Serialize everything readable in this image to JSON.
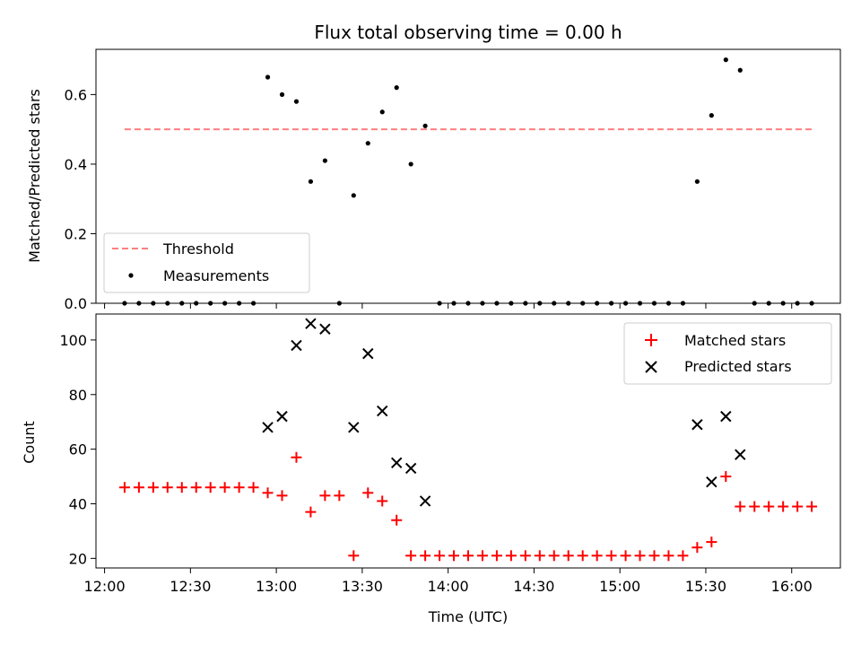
{
  "chart_data": [
    {
      "type": "scatter",
      "title": "Flux total observing time = 0.00 h",
      "xlabel": "",
      "ylabel": "Matched/Predicted stars",
      "ylim": [
        0,
        0.73
      ],
      "yticks": [
        0.0,
        0.2,
        0.4,
        0.6
      ],
      "ytick_labels": [
        "0.0",
        "0.2",
        "0.4",
        "0.6"
      ],
      "threshold": {
        "name": "Threshold",
        "value": 0.5,
        "x_start": "12:07",
        "x_end": "16:07",
        "color": "#ff7f7f"
      },
      "series": [
        {
          "name": "Measurements",
          "color": "#000000",
          "points": [
            [
              "12:07",
              0
            ],
            [
              "12:12",
              0
            ],
            [
              "12:17",
              0
            ],
            [
              "12:22",
              0
            ],
            [
              "12:27",
              0
            ],
            [
              "12:32",
              0
            ],
            [
              "12:37",
              0
            ],
            [
              "12:42",
              0
            ],
            [
              "12:47",
              0
            ],
            [
              "12:52",
              0
            ],
            [
              "12:57",
              0.65
            ],
            [
              "13:02",
              0.6
            ],
            [
              "13:07",
              0.58
            ],
            [
              "13:12",
              0.35
            ],
            [
              "13:17",
              0.41
            ],
            [
              "13:22",
              0
            ],
            [
              "13:27",
              0.31
            ],
            [
              "13:32",
              0.46
            ],
            [
              "13:37",
              0.55
            ],
            [
              "13:42",
              0.62
            ],
            [
              "13:47",
              0.4
            ],
            [
              "13:52",
              0.51
            ],
            [
              "13:57",
              0
            ],
            [
              "14:02",
              0
            ],
            [
              "14:07",
              0
            ],
            [
              "14:12",
              0
            ],
            [
              "14:17",
              0
            ],
            [
              "14:22",
              0
            ],
            [
              "14:27",
              0
            ],
            [
              "14:32",
              0
            ],
            [
              "14:37",
              0
            ],
            [
              "14:42",
              0
            ],
            [
              "14:47",
              0
            ],
            [
              "14:52",
              0
            ],
            [
              "14:57",
              0
            ],
            [
              "15:02",
              0
            ],
            [
              "15:07",
              0
            ],
            [
              "15:12",
              0
            ],
            [
              "15:17",
              0
            ],
            [
              "15:22",
              0
            ],
            [
              "15:27",
              0.35
            ],
            [
              "15:32",
              0.54
            ],
            [
              "15:37",
              0.7
            ],
            [
              "15:42",
              0.67
            ],
            [
              "15:47",
              0
            ],
            [
              "15:52",
              0
            ],
            [
              "15:57",
              0
            ],
            [
              "16:02",
              0
            ],
            [
              "16:07",
              0
            ]
          ]
        }
      ],
      "legend": {
        "placement": "lower-left",
        "entries": [
          "Threshold",
          "Measurements"
        ]
      }
    },
    {
      "type": "scatter",
      "title": "",
      "xlabel": "Time (UTC)",
      "ylabel": "Count",
      "ylim": [
        16.5,
        109.5
      ],
      "xlim": [
        "11:57",
        "16:17"
      ],
      "yticks": [
        20,
        40,
        60,
        80,
        100
      ],
      "ytick_labels": [
        "20",
        "40",
        "60",
        "80",
        "100"
      ],
      "xticks": [
        "12:00",
        "12:30",
        "13:00",
        "13:30",
        "14:00",
        "14:30",
        "15:00",
        "15:30",
        "16:00"
      ],
      "series": [
        {
          "name": "Matched stars",
          "color": "#ff0000",
          "marker": "plus",
          "points": [
            [
              "12:07",
              46
            ],
            [
              "12:12",
              46
            ],
            [
              "12:17",
              46
            ],
            [
              "12:22",
              46
            ],
            [
              "12:27",
              46
            ],
            [
              "12:32",
              46
            ],
            [
              "12:37",
              46
            ],
            [
              "12:42",
              46
            ],
            [
              "12:47",
              46
            ],
            [
              "12:52",
              46
            ],
            [
              "12:57",
              44
            ],
            [
              "13:02",
              43
            ],
            [
              "13:07",
              57
            ],
            [
              "13:12",
              37
            ],
            [
              "13:17",
              43
            ],
            [
              "13:22",
              43
            ],
            [
              "13:27",
              21
            ],
            [
              "13:32",
              44
            ],
            [
              "13:37",
              41
            ],
            [
              "13:42",
              34
            ],
            [
              "13:47",
              21
            ],
            [
              "13:52",
              21
            ],
            [
              "13:57",
              21
            ],
            [
              "14:02",
              21
            ],
            [
              "14:07",
              21
            ],
            [
              "14:12",
              21
            ],
            [
              "14:17",
              21
            ],
            [
              "14:22",
              21
            ],
            [
              "14:27",
              21
            ],
            [
              "14:32",
              21
            ],
            [
              "14:37",
              21
            ],
            [
              "14:42",
              21
            ],
            [
              "14:47",
              21
            ],
            [
              "14:52",
              21
            ],
            [
              "14:57",
              21
            ],
            [
              "15:02",
              21
            ],
            [
              "15:07",
              21
            ],
            [
              "15:12",
              21
            ],
            [
              "15:17",
              21
            ],
            [
              "15:22",
              21
            ],
            [
              "15:27",
              24
            ],
            [
              "15:32",
              26
            ],
            [
              "15:37",
              50
            ],
            [
              "15:42",
              39
            ],
            [
              "15:47",
              39
            ],
            [
              "15:52",
              39
            ],
            [
              "15:57",
              39
            ],
            [
              "16:02",
              39
            ],
            [
              "16:07",
              39
            ]
          ]
        },
        {
          "name": "Predicted stars",
          "color": "#000000",
          "marker": "x",
          "points": [
            [
              "12:57",
              68
            ],
            [
              "13:02",
              72
            ],
            [
              "13:07",
              98
            ],
            [
              "13:12",
              106
            ],
            [
              "13:17",
              104
            ],
            [
              "13:27",
              68
            ],
            [
              "13:32",
              95
            ],
            [
              "13:37",
              74
            ],
            [
              "13:42",
              55
            ],
            [
              "13:47",
              53
            ],
            [
              "13:52",
              41
            ],
            [
              "15:27",
              69
            ],
            [
              "15:32",
              48
            ],
            [
              "15:37",
              72
            ],
            [
              "15:42",
              58
            ]
          ]
        }
      ],
      "legend": {
        "placement": "upper-right",
        "entries": [
          "Matched stars",
          "Predicted stars"
        ]
      }
    }
  ]
}
